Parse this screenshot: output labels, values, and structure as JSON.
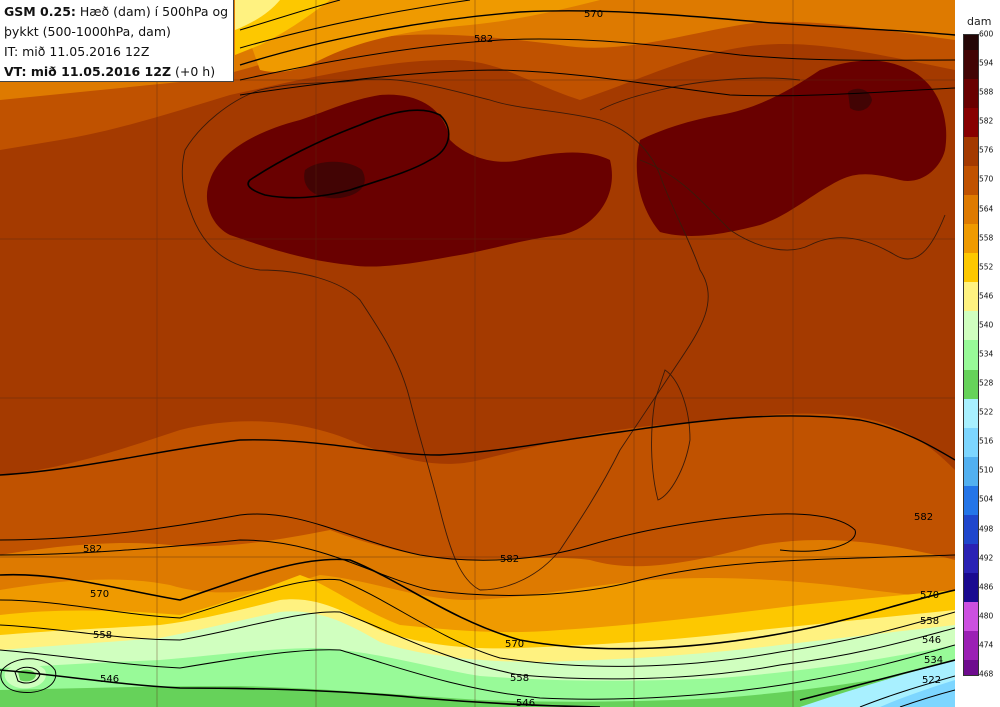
{
  "header": {
    "model": "GSM 0.25:",
    "desc_line1": " Hæð (dam) í 500hPa og",
    "desc_line2": "þykkt (500-1000hPa, dam)",
    "it_line": "IT: mið 11.05.2016 12Z",
    "vt_label": "VT: mið 11.05.2016 12Z",
    "vt_suffix": " (+0 h)"
  },
  "legend": {
    "unit": "dam",
    "ticks": [
      "600",
      "594",
      "588",
      "582",
      "576",
      "570",
      "564",
      "558",
      "552",
      "546",
      "540",
      "534",
      "528",
      "522",
      "516",
      "510",
      "504",
      "498",
      "492",
      "486",
      "480",
      "474",
      "468"
    ],
    "colors": [
      "#240606",
      "#420404",
      "#690000",
      "#880000",
      "#a43a00",
      "#c05200",
      "#de7a00",
      "#ef9a00",
      "#fdc800",
      "#fff280",
      "#d0ffbf",
      "#98fa98",
      "#66d25a",
      "#a8f0ff",
      "#7dd6ff",
      "#52b0f0",
      "#2475e8",
      "#1f46cc",
      "#2a22b4",
      "#1a0a90",
      "#cc50e0",
      "#9b20b4",
      "#6e0c8e",
      "#4a0060"
    ]
  },
  "contour_labels": [
    "570",
    "582",
    "582",
    "582",
    "570",
    "558",
    "546",
    "570",
    "558",
    "546",
    "570",
    "558",
    "546",
    "534",
    "522",
    "582"
  ]
}
